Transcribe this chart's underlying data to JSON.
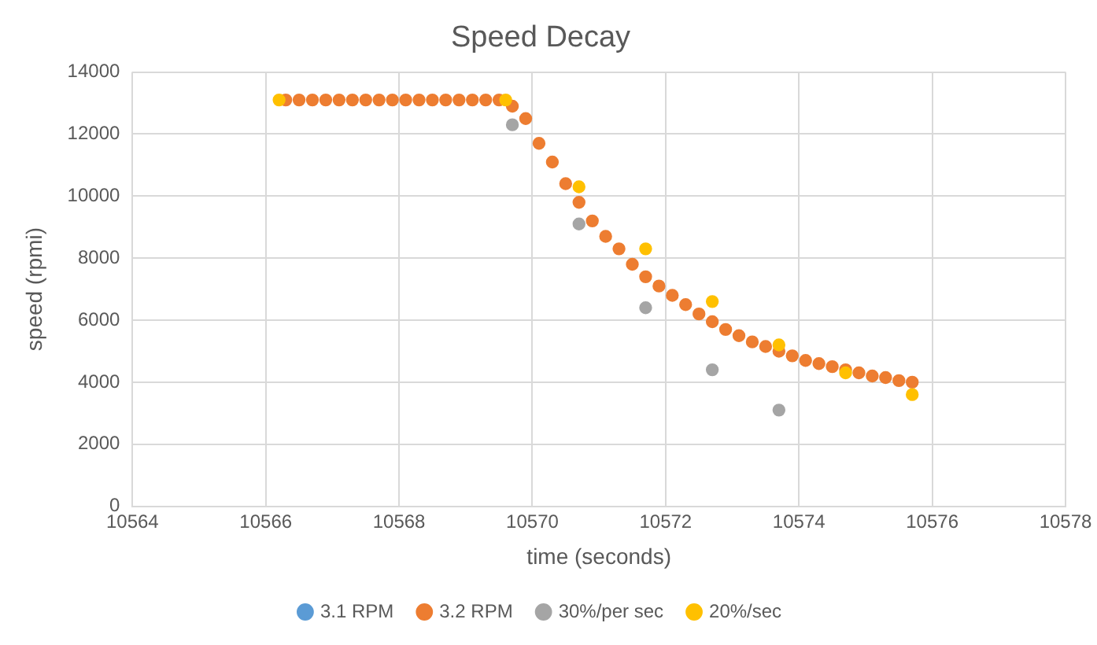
{
  "chart_data": {
    "type": "scatter",
    "title": "Speed Decay",
    "xlabel": "time (seconds)",
    "ylabel": "speed (rpmi)",
    "xlim": [
      10564,
      10578
    ],
    "xticks": [
      10564,
      10566,
      10568,
      10570,
      10572,
      10574,
      10576,
      10578
    ],
    "ylim": [
      0,
      14000
    ],
    "yticks": [
      0,
      2000,
      4000,
      6000,
      8000,
      10000,
      12000,
      14000
    ],
    "grid": true,
    "legend": "bottom",
    "marker": "circle",
    "series": [
      {
        "name": "3.1 RPM",
        "color": "#5b9bd5"
      },
      {
        "name": "3.2 RPM",
        "color": "#ed7d31",
        "x": [
          10566.3,
          10566.5,
          10566.7,
          10566.9,
          10567.1,
          10567.3,
          10567.5,
          10567.7,
          10567.9,
          10568.1,
          10568.3,
          10568.5,
          10568.7,
          10568.9,
          10569.1,
          10569.3,
          10569.5,
          10569.7,
          10569.9,
          10570.1,
          10570.3,
          10570.5,
          10570.7,
          10570.9,
          10571.1,
          10571.3,
          10571.5,
          10571.7,
          10571.9,
          10572.1,
          10572.3,
          10572.5,
          10572.7,
          10572.9,
          10573.1,
          10573.3,
          10573.5,
          10573.7,
          10573.9,
          10574.1,
          10574.3,
          10574.5,
          10574.7,
          10574.9,
          10575.1,
          10575.3,
          10575.5,
          10575.7
        ],
        "values": [
          13100,
          13100,
          13100,
          13100,
          13100,
          13100,
          13100,
          13100,
          13100,
          13100,
          13100,
          13100,
          13100,
          13100,
          13100,
          13100,
          13100,
          12900,
          12500,
          11700,
          11100,
          10400,
          9800,
          9200,
          8700,
          8300,
          7800,
          7400,
          7100,
          6800,
          6500,
          6200,
          5950,
          5700,
          5500,
          5300,
          5150,
          5000,
          4850,
          4700,
          4600,
          4500,
          4400,
          4300,
          4200,
          4150,
          4050,
          4000
        ]
      },
      {
        "name": "30%/per sec",
        "color": "#a5a5a5",
        "x": [
          10569.7,
          10570.7,
          10571.7,
          10572.7,
          10573.7
        ],
        "values": [
          12300,
          9100,
          6400,
          4400,
          3100
        ]
      },
      {
        "name": "20%/sec",
        "color": "#ffc000",
        "x": [
          10566.2,
          10569.6,
          10570.7,
          10571.7,
          10572.7,
          10573.7,
          10574.7,
          10575.7
        ],
        "values": [
          13100,
          13100,
          10300,
          8300,
          6600,
          5200,
          4300,
          3600
        ]
      }
    ]
  }
}
